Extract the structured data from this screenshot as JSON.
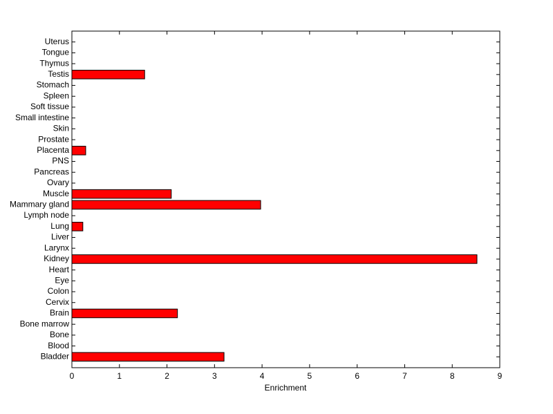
{
  "chart_data": {
    "type": "barh",
    "x_label": "Enrichment",
    "categories": [
      "Bladder",
      "Blood",
      "Bone",
      "Bone marrow",
      "Brain",
      "Cervix",
      "Colon",
      "Eye",
      "Heart",
      "Kidney",
      "Larynx",
      "Liver",
      "Lung",
      "Lymph node",
      "Mammary gland",
      "Muscle",
      "Ovary",
      "Pancreas",
      "PNS",
      "Placenta",
      "Prostate",
      "Skin",
      "Small intestine",
      "Soft tissue",
      "Spleen",
      "Stomach",
      "Testis",
      "Thymus",
      "Tongue",
      "Uterus"
    ],
    "values": [
      3.2,
      0,
      0,
      0,
      2.22,
      0,
      0,
      0,
      0,
      8.52,
      0,
      0,
      0.23,
      0,
      3.97,
      2.09,
      0,
      0,
      0,
      0.29,
      0,
      0,
      0,
      0,
      0,
      0,
      1.53,
      0,
      0,
      0
    ],
    "color": "#ff0000",
    "xlim": [
      0,
      9
    ],
    "xticks": [
      0,
      1,
      2,
      3,
      4,
      5,
      6,
      7,
      8,
      9
    ]
  }
}
